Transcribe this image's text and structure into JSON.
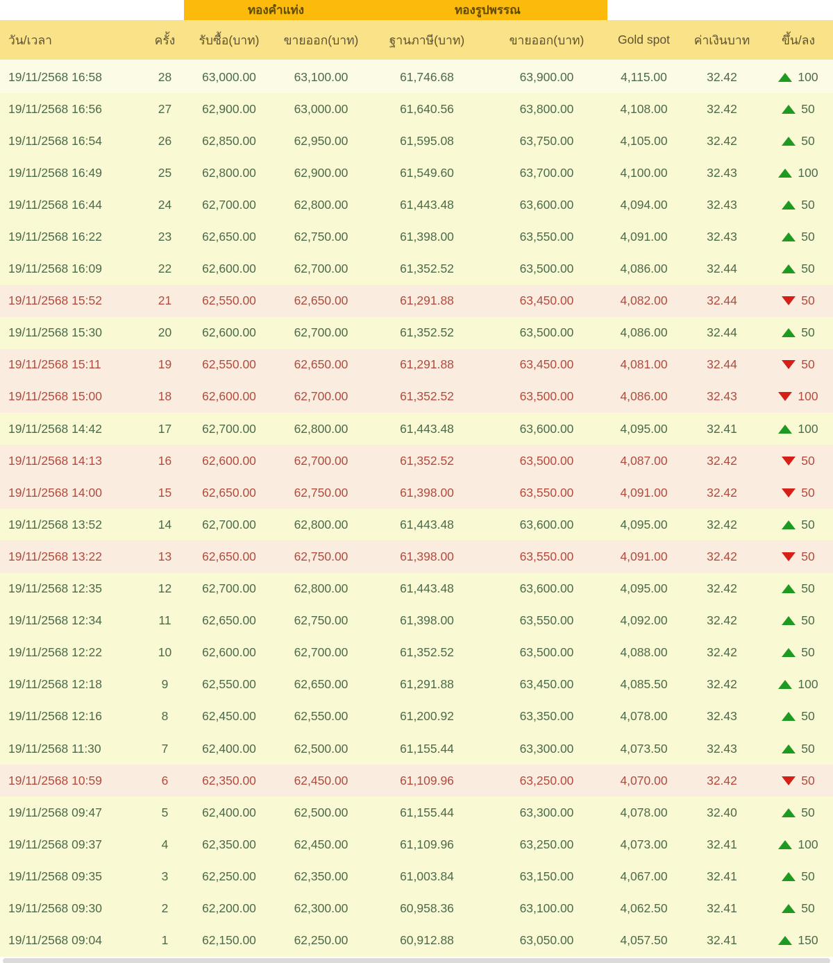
{
  "table": {
    "group_headers": [
      "ทองคำแท่ง",
      "ทองรูปพรรณ"
    ],
    "headers": [
      "วัน/เวลา",
      "ครั้ง",
      "รับซื้อ(บาท)",
      "ขายออก(บาท)",
      "ฐานภาษี(บาท)",
      "ขายออก(บาท)",
      "Gold spot",
      "ค่าเงินบาท",
      "ขึ้น/ลง"
    ],
    "rows": [
      {
        "datetime": "19/11/2568 16:58",
        "seq": "28",
        "buy": "63,000.00",
        "sell": "63,100.00",
        "tax_base": "61,746.68",
        "ornament_sell": "63,900.00",
        "gold_spot": "4,115.00",
        "baht": "32.42",
        "dir": "up",
        "change": "100"
      },
      {
        "datetime": "19/11/2568 16:56",
        "seq": "27",
        "buy": "62,900.00",
        "sell": "63,000.00",
        "tax_base": "61,640.56",
        "ornament_sell": "63,800.00",
        "gold_spot": "4,108.00",
        "baht": "32.42",
        "dir": "up",
        "change": "50"
      },
      {
        "datetime": "19/11/2568 16:54",
        "seq": "26",
        "buy": "62,850.00",
        "sell": "62,950.00",
        "tax_base": "61,595.08",
        "ornament_sell": "63,750.00",
        "gold_spot": "4,105.00",
        "baht": "32.42",
        "dir": "up",
        "change": "50"
      },
      {
        "datetime": "19/11/2568 16:49",
        "seq": "25",
        "buy": "62,800.00",
        "sell": "62,900.00",
        "tax_base": "61,549.60",
        "ornament_sell": "63,700.00",
        "gold_spot": "4,100.00",
        "baht": "32.43",
        "dir": "up",
        "change": "100"
      },
      {
        "datetime": "19/11/2568 16:44",
        "seq": "24",
        "buy": "62,700.00",
        "sell": "62,800.00",
        "tax_base": "61,443.48",
        "ornament_sell": "63,600.00",
        "gold_spot": "4,094.00",
        "baht": "32.43",
        "dir": "up",
        "change": "50"
      },
      {
        "datetime": "19/11/2568 16:22",
        "seq": "23",
        "buy": "62,650.00",
        "sell": "62,750.00",
        "tax_base": "61,398.00",
        "ornament_sell": "63,550.00",
        "gold_spot": "4,091.00",
        "baht": "32.43",
        "dir": "up",
        "change": "50"
      },
      {
        "datetime": "19/11/2568 16:09",
        "seq": "22",
        "buy": "62,600.00",
        "sell": "62,700.00",
        "tax_base": "61,352.52",
        "ornament_sell": "63,500.00",
        "gold_spot": "4,086.00",
        "baht": "32.44",
        "dir": "up",
        "change": "50"
      },
      {
        "datetime": "19/11/2568 15:52",
        "seq": "21",
        "buy": "62,550.00",
        "sell": "62,650.00",
        "tax_base": "61,291.88",
        "ornament_sell": "63,450.00",
        "gold_spot": "4,082.00",
        "baht": "32.44",
        "dir": "down",
        "change": "50"
      },
      {
        "datetime": "19/11/2568 15:30",
        "seq": "20",
        "buy": "62,600.00",
        "sell": "62,700.00",
        "tax_base": "61,352.52",
        "ornament_sell": "63,500.00",
        "gold_spot": "4,086.00",
        "baht": "32.44",
        "dir": "up",
        "change": "50"
      },
      {
        "datetime": "19/11/2568 15:11",
        "seq": "19",
        "buy": "62,550.00",
        "sell": "62,650.00",
        "tax_base": "61,291.88",
        "ornament_sell": "63,450.00",
        "gold_spot": "4,081.00",
        "baht": "32.44",
        "dir": "down",
        "change": "50"
      },
      {
        "datetime": "19/11/2568 15:00",
        "seq": "18",
        "buy": "62,600.00",
        "sell": "62,700.00",
        "tax_base": "61,352.52",
        "ornament_sell": "63,500.00",
        "gold_spot": "4,086.00",
        "baht": "32.43",
        "dir": "down",
        "change": "100"
      },
      {
        "datetime": "19/11/2568 14:42",
        "seq": "17",
        "buy": "62,700.00",
        "sell": "62,800.00",
        "tax_base": "61,443.48",
        "ornament_sell": "63,600.00",
        "gold_spot": "4,095.00",
        "baht": "32.41",
        "dir": "up",
        "change": "100"
      },
      {
        "datetime": "19/11/2568 14:13",
        "seq": "16",
        "buy": "62,600.00",
        "sell": "62,700.00",
        "tax_base": "61,352.52",
        "ornament_sell": "63,500.00",
        "gold_spot": "4,087.00",
        "baht": "32.42",
        "dir": "down",
        "change": "50"
      },
      {
        "datetime": "19/11/2568 14:00",
        "seq": "15",
        "buy": "62,650.00",
        "sell": "62,750.00",
        "tax_base": "61,398.00",
        "ornament_sell": "63,550.00",
        "gold_spot": "4,091.00",
        "baht": "32.42",
        "dir": "down",
        "change": "50"
      },
      {
        "datetime": "19/11/2568 13:52",
        "seq": "14",
        "buy": "62,700.00",
        "sell": "62,800.00",
        "tax_base": "61,443.48",
        "ornament_sell": "63,600.00",
        "gold_spot": "4,095.00",
        "baht": "32.42",
        "dir": "up",
        "change": "50"
      },
      {
        "datetime": "19/11/2568 13:22",
        "seq": "13",
        "buy": "62,650.00",
        "sell": "62,750.00",
        "tax_base": "61,398.00",
        "ornament_sell": "63,550.00",
        "gold_spot": "4,091.00",
        "baht": "32.42",
        "dir": "down",
        "change": "50"
      },
      {
        "datetime": "19/11/2568 12:35",
        "seq": "12",
        "buy": "62,700.00",
        "sell": "62,800.00",
        "tax_base": "61,443.48",
        "ornament_sell": "63,600.00",
        "gold_spot": "4,095.00",
        "baht": "32.42",
        "dir": "up",
        "change": "50"
      },
      {
        "datetime": "19/11/2568 12:34",
        "seq": "11",
        "buy": "62,650.00",
        "sell": "62,750.00",
        "tax_base": "61,398.00",
        "ornament_sell": "63,550.00",
        "gold_spot": "4,092.00",
        "baht": "32.42",
        "dir": "up",
        "change": "50"
      },
      {
        "datetime": "19/11/2568 12:22",
        "seq": "10",
        "buy": "62,600.00",
        "sell": "62,700.00",
        "tax_base": "61,352.52",
        "ornament_sell": "63,500.00",
        "gold_spot": "4,088.00",
        "baht": "32.42",
        "dir": "up",
        "change": "50"
      },
      {
        "datetime": "19/11/2568 12:18",
        "seq": "9",
        "buy": "62,550.00",
        "sell": "62,650.00",
        "tax_base": "61,291.88",
        "ornament_sell": "63,450.00",
        "gold_spot": "4,085.50",
        "baht": "32.42",
        "dir": "up",
        "change": "100"
      },
      {
        "datetime": "19/11/2568 12:16",
        "seq": "8",
        "buy": "62,450.00",
        "sell": "62,550.00",
        "tax_base": "61,200.92",
        "ornament_sell": "63,350.00",
        "gold_spot": "4,078.00",
        "baht": "32.43",
        "dir": "up",
        "change": "50"
      },
      {
        "datetime": "19/11/2568 11:30",
        "seq": "7",
        "buy": "62,400.00",
        "sell": "62,500.00",
        "tax_base": "61,155.44",
        "ornament_sell": "63,300.00",
        "gold_spot": "4,073.50",
        "baht": "32.43",
        "dir": "up",
        "change": "50"
      },
      {
        "datetime": "19/11/2568 10:59",
        "seq": "6",
        "buy": "62,350.00",
        "sell": "62,450.00",
        "tax_base": "61,109.96",
        "ornament_sell": "63,250.00",
        "gold_spot": "4,070.00",
        "baht": "32.42",
        "dir": "down",
        "change": "50"
      },
      {
        "datetime": "19/11/2568 09:47",
        "seq": "5",
        "buy": "62,400.00",
        "sell": "62,500.00",
        "tax_base": "61,155.44",
        "ornament_sell": "63,300.00",
        "gold_spot": "4,078.00",
        "baht": "32.40",
        "dir": "up",
        "change": "50"
      },
      {
        "datetime": "19/11/2568 09:37",
        "seq": "4",
        "buy": "62,350.00",
        "sell": "62,450.00",
        "tax_base": "61,109.96",
        "ornament_sell": "63,250.00",
        "gold_spot": "4,073.00",
        "baht": "32.41",
        "dir": "up",
        "change": "100"
      },
      {
        "datetime": "19/11/2568 09:35",
        "seq": "3",
        "buy": "62,250.00",
        "sell": "62,350.00",
        "tax_base": "61,003.84",
        "ornament_sell": "63,150.00",
        "gold_spot": "4,067.00",
        "baht": "32.41",
        "dir": "up",
        "change": "50"
      },
      {
        "datetime": "19/11/2568 09:30",
        "seq": "2",
        "buy": "62,200.00",
        "sell": "62,300.00",
        "tax_base": "60,958.36",
        "ornament_sell": "63,100.00",
        "gold_spot": "4,062.50",
        "baht": "32.41",
        "dir": "up",
        "change": "50"
      },
      {
        "datetime": "19/11/2568 09:04",
        "seq": "1",
        "buy": "62,150.00",
        "sell": "62,250.00",
        "tax_base": "60,912.88",
        "ornament_sell": "63,050.00",
        "gold_spot": "4,057.50",
        "baht": "32.41",
        "dir": "up",
        "change": "150"
      }
    ],
    "colors": {
      "band_bg": "#FBBA0C",
      "band_text": "#5F4A00",
      "header_bg": "#F9E287",
      "header_text": "#5E5230",
      "up_row_bg": "#F9F9D4",
      "first_row_bg": "#FBFBE6",
      "down_row_bg": "#FAEDE0",
      "up_text": "#4C6A4C",
      "down_text": "#B34A3E",
      "up_arrow": "#1E9A22",
      "down_arrow": "#D42018"
    }
  }
}
